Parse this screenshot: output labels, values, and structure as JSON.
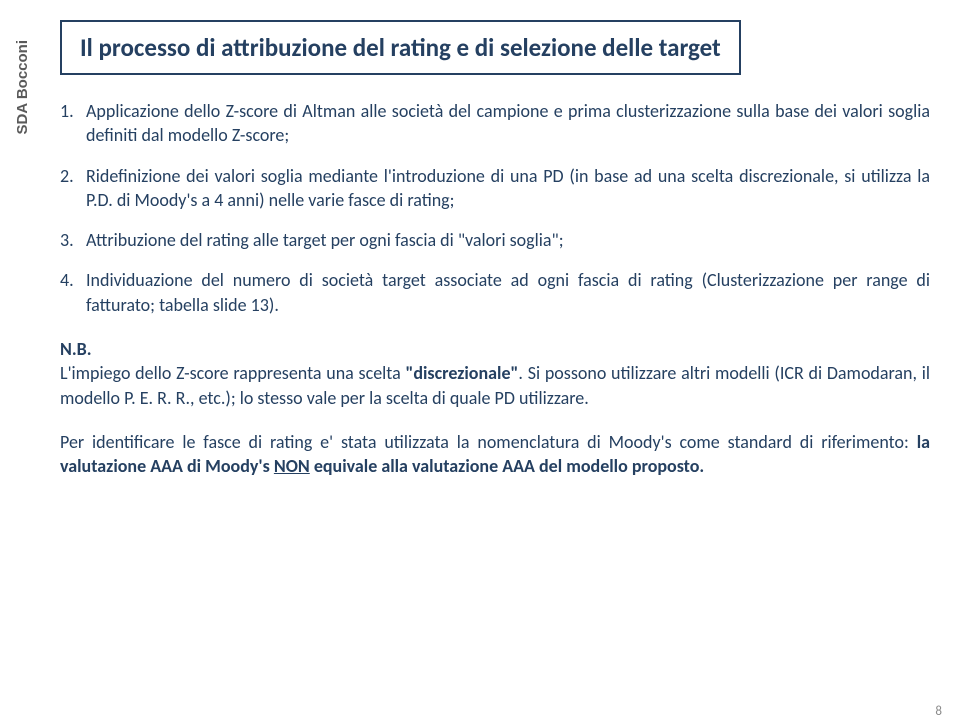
{
  "sidebar": {
    "logo_text": "SDA Bocconi"
  },
  "title": "Il processo di attribuzione del rating e di selezione delle target",
  "items": [
    {
      "num": "1.",
      "text": "Applicazione dello Z-score di Altman alle società del campione e prima clusterizzazione sulla base dei valori soglia definiti dal modello Z-score;"
    },
    {
      "num": "2.",
      "text": "Ridefinizione dei valori soglia mediante l'introduzione di una PD (in base ad una scelta discrezionale, si utilizza la P.D. di Moody's a 4 anni) nelle varie fasce di rating;"
    },
    {
      "num": "3.",
      "text": "Attribuzione del rating alle target per ogni fascia di \"valori soglia\";"
    },
    {
      "num": "4.",
      "text": "Individuazione del numero di società target associate ad ogni fascia di rating (Clusterizzazione per range di fatturato; tabella slide 13)."
    }
  ],
  "nb": {
    "label": "N.B.",
    "pre": "L'impiego dello Z-score rappresenta una scelta ",
    "bold1": "\"discrezionale\"",
    "post": ". Si possono utilizzare altri modelli (ICR di Damodaran, il modello P. E. R. R., etc.); lo stesso vale per la scelta di quale PD utilizzare."
  },
  "final": {
    "pre": "Per identificare le fasce di rating e' stata utilizzata la nomenclatura di Moody's come standard di riferimento: ",
    "bold_pre": "la valutazione AAA di Moody's ",
    "underline": "NON",
    "bold_post": " equivale alla valutazione AAA del modello proposto."
  },
  "page_number": "8"
}
